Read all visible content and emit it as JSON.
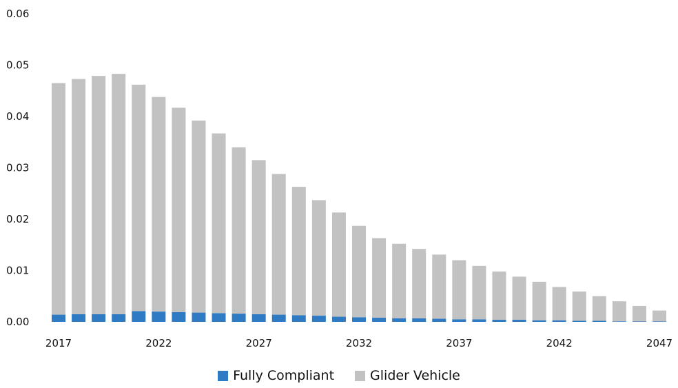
{
  "chart_data": {
    "type": "bar",
    "stacked": true,
    "x": [
      2017,
      2018,
      2019,
      2020,
      2021,
      2022,
      2023,
      2024,
      2025,
      2026,
      2027,
      2028,
      2029,
      2030,
      2031,
      2032,
      2033,
      2034,
      2035,
      2036,
      2037,
      2038,
      2039,
      2040,
      2041,
      2042,
      2043,
      2044,
      2045,
      2046,
      2047
    ],
    "series": [
      {
        "name": "Fully Compliant",
        "color": "#2e7bc4",
        "values": [
          0.0014,
          0.0015,
          0.0015,
          0.0015,
          0.0021,
          0.002,
          0.0019,
          0.0018,
          0.0017,
          0.0016,
          0.0015,
          0.0014,
          0.0013,
          0.0012,
          0.001,
          0.0009,
          0.0008,
          0.0007,
          0.0007,
          0.0006,
          0.0005,
          0.0005,
          0.0004,
          0.0004,
          0.0003,
          0.0003,
          0.0002,
          0.0002,
          0.0001,
          0.0001,
          0.0001
        ]
      },
      {
        "name": "Glider Vehicle",
        "color": "#c2c2c2",
        "values": [
          0.0451,
          0.0458,
          0.0464,
          0.0468,
          0.0441,
          0.0418,
          0.0398,
          0.0374,
          0.035,
          0.0324,
          0.03,
          0.0274,
          0.025,
          0.0225,
          0.0203,
          0.0178,
          0.0155,
          0.0145,
          0.0135,
          0.0125,
          0.0115,
          0.0104,
          0.0094,
          0.0084,
          0.0075,
          0.0065,
          0.0057,
          0.0048,
          0.0039,
          0.003,
          0.0021
        ]
      }
    ],
    "ylim": [
      0,
      0.06
    ],
    "yticks": [
      "0.00",
      "0.01",
      "0.02",
      "0.03",
      "0.04",
      "0.05",
      "0.06"
    ],
    "xtick_labels": [
      "2017",
      "2022",
      "2027",
      "2032",
      "2037",
      "2042",
      "2047"
    ],
    "title": "",
    "xlabel": "",
    "ylabel": "",
    "grid": false,
    "legend_position": "bottom"
  }
}
